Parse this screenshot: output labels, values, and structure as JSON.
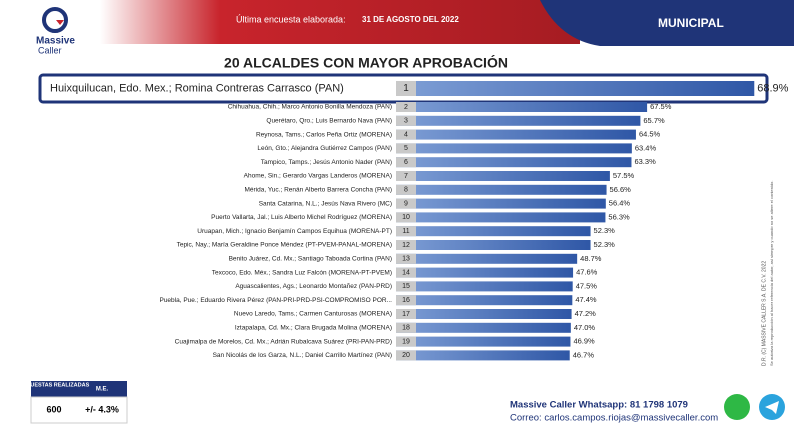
{
  "header": {
    "brand": "Massive\nCaller",
    "brand_line1": "Massive",
    "brand_line2": "Caller",
    "survey_label": "Última encuesta elaborada:",
    "survey_date": "31 DE AGOSTO DEL 2022",
    "section": "MUNICIPAL"
  },
  "chart_data": {
    "type": "bar",
    "title": "20 ALCALDES CON MAYOR APROBACIÓN",
    "categories": [
      "Huixquilucan, Edo. Mex.; Romina Contreras Carrasco (PAN)",
      "Chihuahua, Chih.; Marco Antonio Bonilla Mendoza (PAN)",
      "Querétaro, Qro.; Luis Bernardo Nava (PAN)",
      "Reynosa, Tams.; Carlos Peña Ortiz (MORENA)",
      "León, Gto.; Alejandra Gutiérrez Campos (PAN)",
      "Tampico, Tamps.; Jesús Antonio Nader (PAN)",
      "Ahome, Sin.; Gerardo Vargas Landeros (MORENA)",
      "Mérida, Yuc.; Renán Alberto Barrera Concha (PAN)",
      "Santa Catarina, N.L.; Jesús Nava Rivero (MC)",
      "Puerto Vallarta, Jal.; Luis Alberto Michel Rodríguez (MORENA)",
      "Uruapan, Mich.; Ignacio Benjamín Campos Equihua (MORENA-PT)",
      "Tepic, Nay.; María Geraldine Ponce Méndez (PT-PVEM-PANAL-MORENA)",
      "Benito Juárez, Cd. Mx.; Santiago Taboada Cortina (PAN)",
      "Texcoco, Edo. Méx.; Sandra Luz Falcón (MORENA-PT-PVEM)",
      "Aguascalientes, Ags.; Leonardo Montañez (PAN-PRD)",
      "Puebla, Pue.; Eduardo Rivera Pérez (PAN-PRI-PRD-PSI-COMPROMISO POR...",
      "Nuevo Laredo, Tams.; Carmen Canturosas (MORENA)",
      "Iztapalapa, Cd. Mx.; Clara Brugada Molina (MORENA)",
      "Cuajimalpa de Morelos, Cd. Mx.; Adrián Rubalcava Suárez (PRI-PAN-PRD)",
      "San Nicolás de los Garza, N.L.; Daniel Carrillo Martínez (PAN)"
    ],
    "ranks": [
      1,
      2,
      3,
      4,
      5,
      6,
      7,
      8,
      9,
      10,
      11,
      12,
      13,
      14,
      15,
      16,
      17,
      18,
      19,
      20
    ],
    "values": [
      68.9,
      67.5,
      65.7,
      64.5,
      63.4,
      63.3,
      57.5,
      56.6,
      56.4,
      56.3,
      52.3,
      52.3,
      48.7,
      47.6,
      47.5,
      47.4,
      47.2,
      47.0,
      46.9,
      46.7
    ],
    "value_labels": [
      "68.9%",
      "67.5%",
      "65.7%",
      "64.5%",
      "63.4%",
      "63.3%",
      "57.5%",
      "56.6%",
      "56.4%",
      "56.3%",
      "52.3%",
      "52.3%",
      "48.7%",
      "47.6%",
      "47.5%",
      "47.4%",
      "47.2%",
      "47.0%",
      "46.9%",
      "46.7%"
    ],
    "color": "#3a63b0"
  },
  "footer": {
    "surveys_label": "ENCUESTAS REALIZADAS",
    "margin_label": "M.E.",
    "surveys": "600",
    "margin": "+/- 4.3%",
    "whatsapp": "Massive Caller Whatsapp: 81 1798 1079",
    "email": "Correo: carlos.campos.riojas@massivecaller.com",
    "rights": "D.R. (C) MASSIVE CALLER S.A. DE C.V. 2022",
    "reproduction": "Se autoriza la reproducción al hacer referencia del autor, así siempre y cuando no se altere el contenido."
  }
}
